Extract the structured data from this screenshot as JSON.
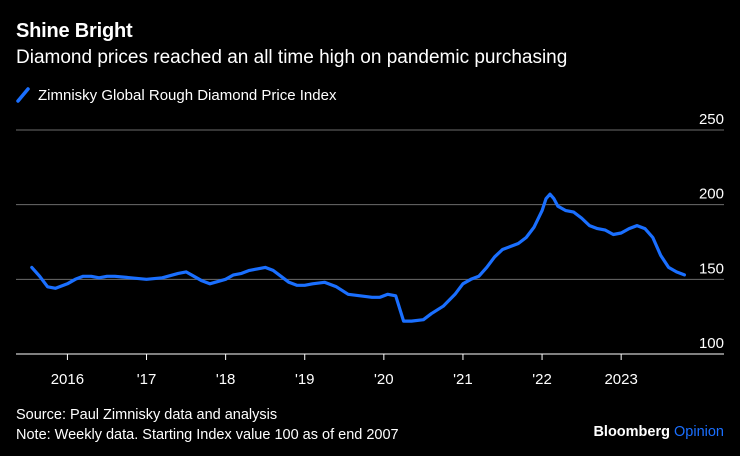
{
  "header": {
    "title": "Shine Bright",
    "subtitle": "Diamond prices reached an all time high on pandemic purchasing"
  },
  "footer": {
    "source": "Source: Paul Zimnisky data and analysis",
    "note": "Note: Weekly data. Starting Index value 100 as of end 2007"
  },
  "brand": {
    "name": "Bloomberg",
    "section": "Opinion"
  },
  "colors": {
    "background": "#000000",
    "line": "#1a6fff",
    "grid": "#6b6b6b",
    "text": "#ffffff"
  },
  "chart_data": {
    "type": "line",
    "title": "Shine Bright",
    "subtitle": "Diamond prices reached an all time high on pandemic purchasing",
    "xlabel": "",
    "ylabel": "",
    "ylim": [
      100,
      250
    ],
    "xlim": [
      2015.35,
      2024.3
    ],
    "yticks": [
      100,
      150,
      200,
      250
    ],
    "yticklabels": [
      "100",
      "150",
      "200",
      "250"
    ],
    "xticks": [
      2016,
      2017,
      2018,
      2019,
      2020,
      2021,
      2022,
      2023
    ],
    "xticklabels": [
      "2016",
      "'17",
      "'18",
      "'19",
      "'20",
      "'21",
      "'22",
      "2023"
    ],
    "grid": true,
    "legend_position": "top-left",
    "series": [
      {
        "name": "Zimnisky Global Rough Diamond Price Index",
        "x": [
          2015.55,
          2015.65,
          2015.75,
          2015.85,
          2016.0,
          2016.1,
          2016.2,
          2016.3,
          2016.4,
          2016.5,
          2016.6,
          2016.8,
          2017.0,
          2017.2,
          2017.4,
          2017.5,
          2017.6,
          2017.7,
          2017.8,
          2018.0,
          2018.1,
          2018.2,
          2018.3,
          2018.4,
          2018.5,
          2018.6,
          2018.7,
          2018.8,
          2018.9,
          2019.0,
          2019.1,
          2019.25,
          2019.4,
          2019.55,
          2019.7,
          2019.85,
          2019.95,
          2020.05,
          2020.15,
          2020.25,
          2020.35,
          2020.5,
          2020.6,
          2020.75,
          2020.9,
          2021.0,
          2021.1,
          2021.2,
          2021.3,
          2021.4,
          2021.5,
          2021.6,
          2021.7,
          2021.8,
          2021.9,
          2022.0,
          2022.05,
          2022.1,
          2022.15,
          2022.2,
          2022.3,
          2022.4,
          2022.5,
          2022.6,
          2022.7,
          2022.8,
          2022.9,
          2023.0,
          2023.1,
          2023.2,
          2023.3,
          2023.4,
          2023.5,
          2023.6,
          2023.7,
          2023.8
        ],
        "values": [
          158,
          152,
          145,
          144,
          147,
          150,
          152,
          152,
          151,
          152,
          152,
          151,
          150,
          151,
          154,
          155,
          152,
          149,
          147,
          150,
          153,
          154,
          156,
          157,
          158,
          156,
          152,
          148,
          146,
          146,
          147,
          148,
          145,
          140,
          139,
          138,
          138,
          140,
          139,
          122,
          122,
          123,
          127,
          132,
          140,
          147,
          150,
          152,
          158,
          165,
          170,
          172,
          174,
          178,
          185,
          196,
          204,
          207,
          204,
          199,
          196,
          195,
          191,
          186,
          184,
          183,
          180,
          181,
          184,
          186,
          184,
          178,
          166,
          158,
          155,
          153
        ]
      }
    ]
  }
}
